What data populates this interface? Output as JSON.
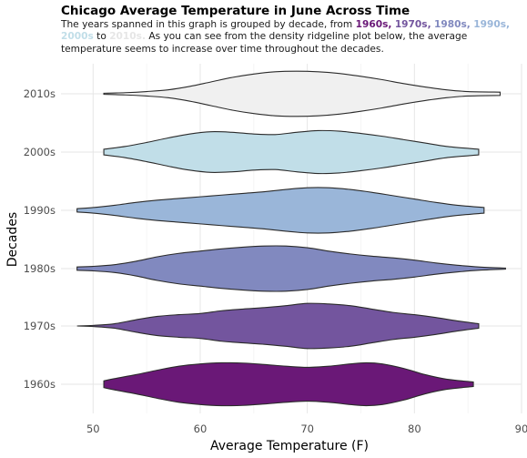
{
  "chart_data": {
    "type": "ridgeline-violin",
    "title": "Chicago Average Temperature in June Across Time",
    "subtitle": {
      "pre": "The years spanned in this graph is grouped by decade, from",
      "decades_listed": [
        "1960s,",
        "1970s,",
        "1980s,",
        "1990s,",
        "2000s",
        "2010s."
      ],
      "connector": "to",
      "post": "As you can see from the density ridgeline plot below, the average temperature seems to increase over time throughout the decades."
    },
    "xlabel": "Average Temperature (F)",
    "ylabel": "Decades",
    "xlim": [
      47,
      90
    ],
    "x_ticks": [
      50,
      60,
      70,
      80,
      90
    ],
    "grid": true,
    "categories": [
      "1960s",
      "1970s",
      "1980s",
      "1990s",
      "2000s",
      "2010s"
    ],
    "series": [
      {
        "name": "1960s",
        "color": "#6a1877",
        "min": 51,
        "max": 85.5,
        "density": [
          [
            51,
            0.12
          ],
          [
            52,
            0.2
          ],
          [
            54,
            0.34
          ],
          [
            56,
            0.5
          ],
          [
            58,
            0.64
          ],
          [
            60,
            0.72
          ],
          [
            62,
            0.76
          ],
          [
            64,
            0.75
          ],
          [
            66,
            0.7
          ],
          [
            68,
            0.64
          ],
          [
            70,
            0.6
          ],
          [
            72,
            0.64
          ],
          [
            74,
            0.72
          ],
          [
            75.5,
            0.76
          ],
          [
            77,
            0.72
          ],
          [
            79,
            0.56
          ],
          [
            81,
            0.34
          ],
          [
            83,
            0.18
          ],
          [
            85.5,
            0.08
          ]
        ]
      },
      {
        "name": "1970s",
        "color": "#73559e",
        "min": 48.5,
        "max": 86,
        "density": [
          [
            48.5,
            0.0
          ],
          [
            50,
            0.02
          ],
          [
            52,
            0.08
          ],
          [
            54,
            0.22
          ],
          [
            56,
            0.34
          ],
          [
            58,
            0.4
          ],
          [
            60,
            0.44
          ],
          [
            62,
            0.54
          ],
          [
            64,
            0.6
          ],
          [
            66,
            0.65
          ],
          [
            68,
            0.72
          ],
          [
            70,
            0.8
          ],
          [
            72,
            0.78
          ],
          [
            74,
            0.72
          ],
          [
            76,
            0.6
          ],
          [
            78,
            0.48
          ],
          [
            80,
            0.4
          ],
          [
            82,
            0.3
          ],
          [
            84,
            0.18
          ],
          [
            86,
            0.08
          ]
        ]
      },
      {
        "name": "1980s",
        "color": "#8189bf",
        "min": 48.5,
        "max": 88.5,
        "density": [
          [
            48.5,
            0.06
          ],
          [
            50,
            0.08
          ],
          [
            52,
            0.14
          ],
          [
            54,
            0.26
          ],
          [
            56,
            0.42
          ],
          [
            58,
            0.54
          ],
          [
            60,
            0.62
          ],
          [
            62,
            0.7
          ],
          [
            64,
            0.76
          ],
          [
            66,
            0.8
          ],
          [
            68,
            0.8
          ],
          [
            70,
            0.74
          ],
          [
            72,
            0.62
          ],
          [
            74,
            0.52
          ],
          [
            76,
            0.44
          ],
          [
            78,
            0.38
          ],
          [
            80,
            0.3
          ],
          [
            82,
            0.2
          ],
          [
            84,
            0.12
          ],
          [
            86,
            0.06
          ],
          [
            88.5,
            0.02
          ]
        ]
      },
      {
        "name": "1990s",
        "color": "#9ab6d9",
        "min": 48.5,
        "max": 86.5,
        "density": [
          [
            48.5,
            0.06
          ],
          [
            50,
            0.1
          ],
          [
            52,
            0.18
          ],
          [
            54,
            0.28
          ],
          [
            56,
            0.36
          ],
          [
            58,
            0.42
          ],
          [
            60,
            0.48
          ],
          [
            62,
            0.54
          ],
          [
            64,
            0.6
          ],
          [
            66,
            0.66
          ],
          [
            68,
            0.74
          ],
          [
            70,
            0.8
          ],
          [
            72,
            0.8
          ],
          [
            74,
            0.74
          ],
          [
            76,
            0.64
          ],
          [
            78,
            0.52
          ],
          [
            80,
            0.4
          ],
          [
            82,
            0.28
          ],
          [
            84,
            0.18
          ],
          [
            86.5,
            0.1
          ]
        ]
      },
      {
        "name": "2000s",
        "color": "#c1dee8",
        "min": 51,
        "max": 86,
        "density": [
          [
            51,
            0.1
          ],
          [
            53,
            0.2
          ],
          [
            55,
            0.34
          ],
          [
            57,
            0.5
          ],
          [
            59,
            0.64
          ],
          [
            61,
            0.72
          ],
          [
            63,
            0.7
          ],
          [
            65,
            0.64
          ],
          [
            67,
            0.62
          ],
          [
            69,
            0.7
          ],
          [
            71,
            0.76
          ],
          [
            73,
            0.74
          ],
          [
            75,
            0.66
          ],
          [
            77,
            0.56
          ],
          [
            79,
            0.44
          ],
          [
            81,
            0.32
          ],
          [
            83,
            0.2
          ],
          [
            86,
            0.1
          ]
        ]
      },
      {
        "name": "2010s",
        "color": "#f0f0f0",
        "min": 51,
        "max": 88,
        "density": [
          [
            51,
            0.02
          ],
          [
            53,
            0.04
          ],
          [
            55,
            0.08
          ],
          [
            57,
            0.14
          ],
          [
            59,
            0.26
          ],
          [
            61,
            0.42
          ],
          [
            63,
            0.58
          ],
          [
            65,
            0.7
          ],
          [
            67,
            0.78
          ],
          [
            69,
            0.8
          ],
          [
            71,
            0.78
          ],
          [
            73,
            0.72
          ],
          [
            75,
            0.62
          ],
          [
            77,
            0.5
          ],
          [
            79,
            0.36
          ],
          [
            81,
            0.24
          ],
          [
            83,
            0.14
          ],
          [
            85,
            0.08
          ],
          [
            88,
            0.06
          ]
        ]
      }
    ]
  }
}
